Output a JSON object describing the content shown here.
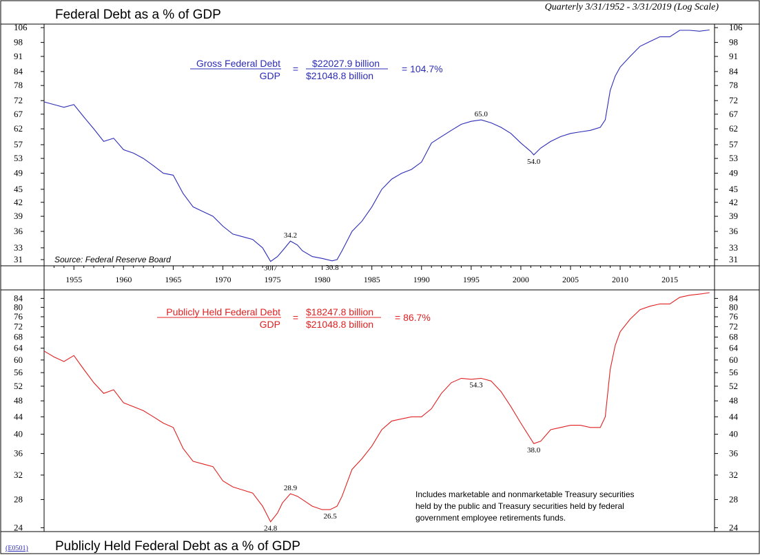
{
  "header": {
    "title_top": "Federal Debt as a % of GDP",
    "subtitle": "Quarterly 3/31/1952 - 3/31/2019 (Log Scale)",
    "title_bottom": "Publicly Held Federal Debt as a % of GDP",
    "code": "(E0501)"
  },
  "top_panel": {
    "source": "Source: Federal Reserve Board",
    "formula": {
      "label": "Gross Federal Debt",
      "denominator_label": "GDP",
      "numerator_value": "$22027.9 billion",
      "denominator_value": "$21048.8 billion",
      "equals": "=",
      "result": "= 104.7%"
    },
    "color": "#2b2bb8"
  },
  "bottom_panel": {
    "note_lines": [
      "Includes marketable and nonmarketable Treasury securities",
      "held by the public and Treasury securities held by federal",
      "government employee retirements funds."
    ],
    "formula": {
      "label": "Publicly Held Federal Debt",
      "denominator_label": "GDP",
      "numerator_value": "$18247.8 billion",
      "denominator_value": "$21048.8 billion",
      "equals": "=",
      "result": "= 86.7%"
    },
    "color": "#e02020"
  },
  "chart_data": [
    {
      "type": "line",
      "title": "Federal Debt as a % of GDP",
      "scale": "log",
      "ylim": [
        30,
        108
      ],
      "xlim": [
        1952,
        2019.5
      ],
      "y_ticks": [
        31,
        33,
        36,
        39,
        42,
        45,
        49,
        53,
        57,
        62,
        67,
        72,
        78,
        84,
        91,
        98,
        106
      ],
      "x_ticks": [
        1955,
        1960,
        1965,
        1970,
        1975,
        1980,
        1985,
        1990,
        1995,
        2000,
        2005,
        2010,
        2015
      ],
      "series": [
        {
          "x": [
            1952,
            1953,
            1954,
            1955,
            1956,
            1957,
            1958,
            1959,
            1960,
            1961,
            1962,
            1963,
            1964,
            1965,
            1966,
            1967,
            1968,
            1969,
            1970,
            1971,
            1972,
            1973,
            1974,
            1974.8,
            1975.5,
            1976,
            1976.8,
            1977.5,
            1978,
            1979,
            1980,
            1981,
            1981.5,
            1982,
            1983,
            1984,
            1985,
            1986,
            1987,
            1988,
            1989,
            1990,
            1991,
            1992,
            1993,
            1994,
            1995,
            1996,
            1997,
            1998,
            1999,
            2000,
            2001,
            2001.3,
            2002,
            2003,
            2004,
            2005,
            2006,
            2007,
            2008,
            2008.5,
            2009,
            2009.5,
            2010,
            2011,
            2012,
            2013,
            2014,
            2015,
            2016,
            2017,
            2018,
            2019
          ],
          "y": [
            71.5,
            70.5,
            69.5,
            70.5,
            66,
            62,
            58,
            59,
            55.5,
            54.5,
            53,
            51,
            49,
            48.5,
            44,
            41,
            40,
            39,
            37,
            35.5,
            35,
            34.5,
            33,
            30.7,
            31.5,
            32.5,
            34.2,
            33.5,
            32.5,
            31.5,
            31.2,
            30.8,
            31,
            32.5,
            36,
            38,
            41,
            45,
            47.5,
            49,
            50,
            52,
            57.5,
            59.5,
            61.5,
            63.5,
            64.5,
            65.0,
            64,
            62.5,
            60.5,
            57.5,
            55,
            54.0,
            56,
            58,
            59.5,
            60.5,
            61,
            61.5,
            62.5,
            65,
            76,
            82,
            86,
            91,
            96,
            98.5,
            101,
            101,
            104.5,
            104.5,
            104,
            104.7
          ]
        }
      ],
      "annotations": [
        {
          "x": 1974.8,
          "y": 30.7,
          "text": "30.7"
        },
        {
          "x": 1976.8,
          "y": 34.2,
          "text": "34.2"
        },
        {
          "x": 1981,
          "y": 30.8,
          "text": "30.8"
        },
        {
          "x": 1996,
          "y": 65.0,
          "text": "65.0"
        },
        {
          "x": 2001.3,
          "y": 54.0,
          "text": "54.0"
        }
      ]
    },
    {
      "type": "line",
      "title": "Publicly Held Federal Debt as a % of GDP",
      "scale": "log",
      "ylim": [
        23.5,
        88
      ],
      "xlim": [
        1952,
        2019.5
      ],
      "y_ticks": [
        24,
        28,
        32,
        36,
        40,
        44,
        48,
        52,
        56,
        60,
        64,
        68,
        72,
        76,
        80,
        84
      ],
      "x_ticks": [
        1955,
        1960,
        1965,
        1970,
        1975,
        1980,
        1985,
        1990,
        1995,
        2000,
        2005,
        2010,
        2015
      ],
      "series": [
        {
          "x": [
            1952,
            1953,
            1954,
            1955,
            1956,
            1957,
            1958,
            1959,
            1960,
            1961,
            1962,
            1963,
            1964,
            1965,
            1966,
            1967,
            1968,
            1969,
            1970,
            1971,
            1972,
            1973,
            1974,
            1974.8,
            1975.5,
            1976,
            1976.8,
            1977.5,
            1978,
            1979,
            1980,
            1980.8,
            1981.5,
            1982,
            1983,
            1984,
            1985,
            1986,
            1987,
            1988,
            1989,
            1990,
            1991,
            1992,
            1993,
            1994,
            1995,
            1996,
            1997,
            1998,
            1999,
            2000,
            2001,
            2001.3,
            2002,
            2003,
            2004,
            2005,
            2006,
            2007,
            2008,
            2008.5,
            2009,
            2009.5,
            2010,
            2011,
            2012,
            2013,
            2014,
            2015,
            2016,
            2017,
            2018,
            2019
          ],
          "y": [
            63,
            61,
            59.5,
            61.5,
            57,
            53,
            50,
            51,
            47.5,
            46.5,
            45.5,
            44,
            42.5,
            41.5,
            37,
            34.5,
            34,
            33.5,
            31,
            30,
            29.5,
            29,
            27,
            24.8,
            26,
            27.5,
            28.9,
            28.5,
            28,
            27,
            26.5,
            26.5,
            27,
            28.5,
            33,
            35,
            37.5,
            41,
            43,
            43.5,
            44,
            44,
            46,
            50,
            53,
            54.3,
            54,
            54.3,
            53.5,
            50.5,
            46.5,
            42.5,
            39,
            38.0,
            38.5,
            41,
            41.5,
            42,
            42,
            41.5,
            41.5,
            44,
            57,
            65,
            70,
            75,
            79,
            80.5,
            81.5,
            81.5,
            84.5,
            85.5,
            86,
            86.7
          ]
        }
      ],
      "annotations": [
        {
          "x": 1974.8,
          "y": 24.8,
          "text": "24.8"
        },
        {
          "x": 1976.8,
          "y": 28.9,
          "text": "28.9"
        },
        {
          "x": 1980.8,
          "y": 26.5,
          "text": "26.5"
        },
        {
          "x": 1995.5,
          "y": 54.3,
          "text": "54.3"
        },
        {
          "x": 2001.3,
          "y": 38.0,
          "text": "38.0"
        }
      ]
    }
  ]
}
